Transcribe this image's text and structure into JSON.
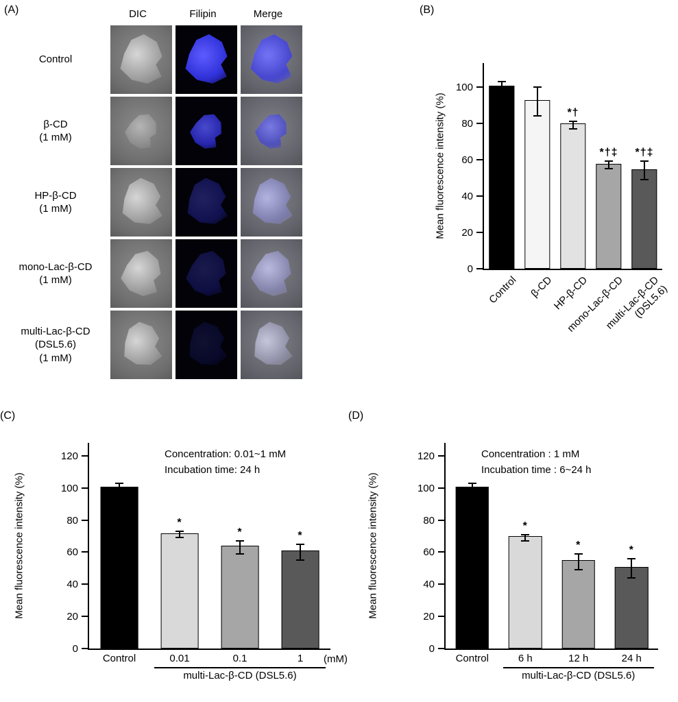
{
  "figure": {
    "background": "#ffffff"
  },
  "panels": {
    "A": {
      "label": "(A)",
      "column_headers": [
        "DIC",
        "Filipin",
        "Merge"
      ],
      "filipin_color": "#2f2fd8",
      "filipin_color_bright": "#5c5cff",
      "rows": [
        {
          "label_lines": [
            "Control"
          ],
          "filipin_intensity": 1.0
        },
        {
          "label_lines": [
            "β-CD",
            "(1 mM)"
          ],
          "filipin_intensity": 0.8
        },
        {
          "label_lines": [
            "HP-β-CD",
            "(1 mM)"
          ],
          "filipin_intensity": 0.35
        },
        {
          "label_lines": [
            "mono-Lac-β-CD",
            "(1 mM)"
          ],
          "filipin_intensity": 0.28
        },
        {
          "label_lines": [
            "multi-Lac-β-CD",
            "(DSL5.6)",
            "(1 mM)"
          ],
          "filipin_intensity": 0.16
        }
      ]
    },
    "B": {
      "label": "(B)"
    },
    "C": {
      "label": "(C)"
    },
    "D": {
      "label": "(D)"
    }
  },
  "chart_data": [
    {
      "panel": "B",
      "type": "bar",
      "title": "",
      "xlabel": "",
      "ylabel": "Mean fluorescence intensity (%)",
      "ylim": [
        0,
        113
      ],
      "yticks": [
        0,
        20,
        40,
        60,
        80,
        100
      ],
      "grid": false,
      "legend": "none",
      "categories": [
        [
          "Control"
        ],
        [
          "β-CD"
        ],
        [
          "HP-β-CD"
        ],
        [
          "mono-Lac-β-CD"
        ],
        [
          "multi-Lac-β-CD",
          "(DSL5.6)"
        ]
      ],
      "values": [
        100,
        92,
        79,
        57,
        54
      ],
      "errors": [
        3,
        8,
        2,
        2,
        5
      ],
      "sig_labels": [
        "",
        "",
        "*†",
        "*†‡",
        "*†‡"
      ],
      "bar_colors": [
        "#000000",
        "#f5f5f5",
        "#e2e2e2",
        "#a6a6a6",
        "#595959"
      ],
      "x_label_rotation_deg": -45
    },
    {
      "panel": "C",
      "type": "bar",
      "title": "",
      "xlabel": "",
      "ylabel": "Mean fluorescence intensity (%)",
      "ylim": [
        0,
        128
      ],
      "yticks": [
        0,
        20,
        40,
        60,
        80,
        100,
        120
      ],
      "grid": false,
      "legend": "none",
      "categories": [
        [
          "Control"
        ],
        [
          "0.01"
        ],
        [
          "0.1"
        ],
        [
          "1"
        ]
      ],
      "values": [
        100,
        71,
        63,
        60
      ],
      "errors": [
        3,
        2,
        4,
        5
      ],
      "sig_labels": [
        "",
        "*",
        "*",
        "*"
      ],
      "bar_colors": [
        "#000000",
        "#d9d9d9",
        "#a6a6a6",
        "#595959"
      ],
      "x_unit": "(mM)",
      "annotation_lines": [
        "Concentration: 0.01~1 mM",
        "Incubation time: 24 h"
      ],
      "group": {
        "label": "multi-Lac-β-CD (DSL5.6)",
        "from": 1,
        "to": 3
      }
    },
    {
      "panel": "D",
      "type": "bar",
      "title": "",
      "xlabel": "",
      "ylabel": "Mean fluorescence intensity (%)",
      "ylim": [
        0,
        128
      ],
      "yticks": [
        0,
        20,
        40,
        60,
        80,
        100,
        120
      ],
      "grid": false,
      "legend": "none",
      "categories": [
        [
          "Control"
        ],
        [
          "6 h"
        ],
        [
          "12 h"
        ],
        [
          "24 h"
        ]
      ],
      "values": [
        100,
        69,
        54,
        50
      ],
      "errors": [
        3,
        2,
        5,
        6
      ],
      "sig_labels": [
        "",
        "*",
        "*",
        "*"
      ],
      "bar_colors": [
        "#000000",
        "#d9d9d9",
        "#a6a6a6",
        "#595959"
      ],
      "annotation_lines": [
        "Concentration : 1 mM",
        "Incubation time : 6~24 h"
      ],
      "group": {
        "label": "multi-Lac-β-CD (DSL5.6)",
        "from": 1,
        "to": 3
      }
    }
  ]
}
